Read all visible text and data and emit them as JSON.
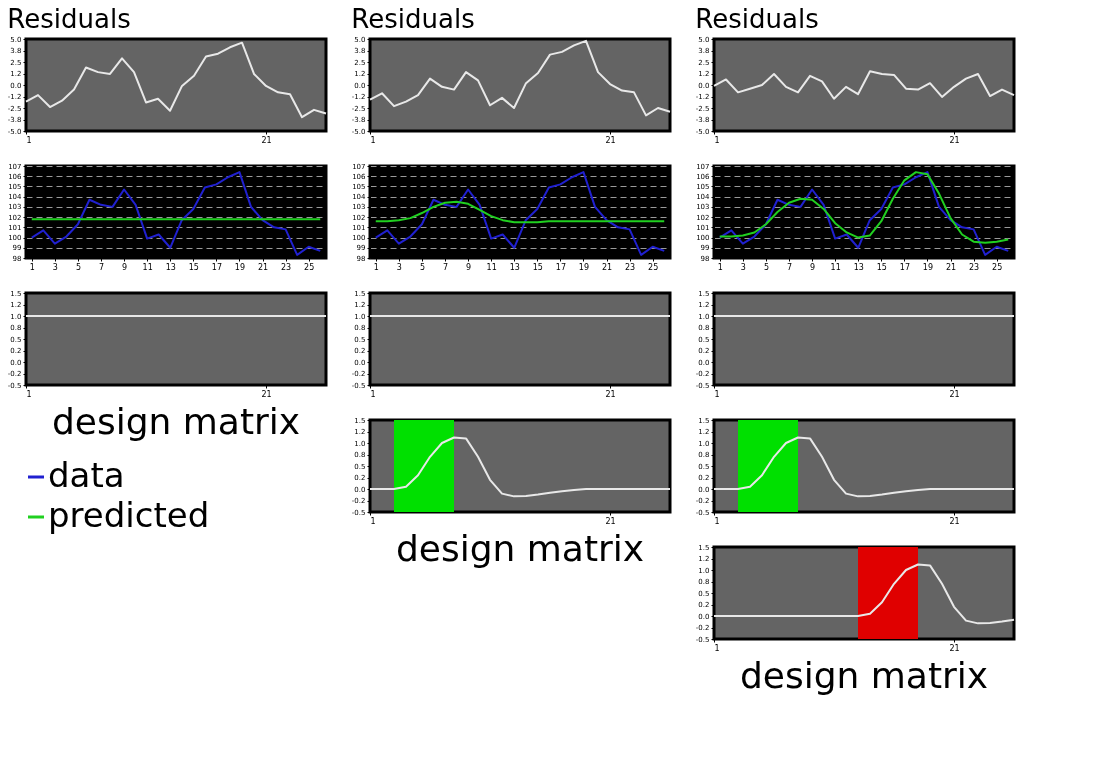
{
  "chart_data": [
    {
      "type": "line",
      "title": "Residuals",
      "x": [
        1,
        2,
        3,
        4,
        5,
        6,
        7,
        8,
        9,
        10,
        11,
        12,
        13,
        14,
        15,
        16,
        17,
        18,
        19,
        20,
        21,
        22,
        23,
        24,
        25,
        26
      ],
      "xlim": [
        1,
        26
      ],
      "xticks": [
        1,
        21
      ],
      "ylim": [
        -5,
        5
      ],
      "yticks": [
        {
          "value": 5,
          "label": "5.0"
        },
        {
          "value": 3.75,
          "label": "3.8"
        },
        {
          "value": 2.5,
          "label": "2.5"
        },
        {
          "value": 1.25,
          "label": "1.2"
        },
        {
          "value": 0,
          "label": "0.0"
        },
        {
          "value": -1.25,
          "label": "-1.2"
        },
        {
          "value": -2.5,
          "label": "-2.5"
        },
        {
          "value": -3.75,
          "label": "-3.8"
        },
        {
          "value": -5,
          "label": "-5.0"
        }
      ],
      "grid": false,
      "series": [
        {
          "color": "#e8e8e8",
          "values": [
            -1.8,
            -1.1,
            -2.4,
            -1.7,
            -0.5,
            1.9,
            1.4,
            1.2,
            2.9,
            1.4,
            -1.9,
            -1.5,
            -2.8,
            -0.1,
            1.0,
            3.1,
            3.4,
            4.1,
            4.6,
            1.2,
            -0.1,
            -0.8,
            -1.0,
            -3.5,
            -2.7,
            -3.1
          ]
        }
      ]
    },
    {
      "type": "line",
      "title": "Residuals",
      "x": [
        1,
        2,
        3,
        4,
        5,
        6,
        7,
        8,
        9,
        10,
        11,
        12,
        13,
        14,
        15,
        16,
        17,
        18,
        19,
        20,
        21,
        22,
        23,
        24,
        25,
        26
      ],
      "xlim": [
        1,
        26
      ],
      "xticks": [
        1,
        21
      ],
      "ylim": [
        -5,
        5
      ],
      "yticks": [
        {
          "value": 5,
          "label": "5.0"
        },
        {
          "value": 3.75,
          "label": "3.8"
        },
        {
          "value": 2.5,
          "label": "2.5"
        },
        {
          "value": 1.25,
          "label": "1.2"
        },
        {
          "value": 0,
          "label": "0.0"
        },
        {
          "value": -1.25,
          "label": "-1.2"
        },
        {
          "value": -2.5,
          "label": "-2.5"
        },
        {
          "value": -3.75,
          "label": "-3.8"
        },
        {
          "value": -5,
          "label": "-5.0"
        }
      ],
      "grid": false,
      "series": [
        {
          "color": "#e8e8e8",
          "values": [
            -1.6,
            -0.9,
            -2.3,
            -1.8,
            -1.1,
            0.7,
            -0.2,
            -0.5,
            1.4,
            0.5,
            -2.2,
            -1.4,
            -2.5,
            0.2,
            1.3,
            3.3,
            3.6,
            4.3,
            4.8,
            1.4,
            0.1,
            -0.6,
            -0.8,
            -3.3,
            -2.5,
            -2.9
          ]
        }
      ]
    },
    {
      "type": "line",
      "title": "Residuals",
      "x": [
        1,
        2,
        3,
        4,
        5,
        6,
        7,
        8,
        9,
        10,
        11,
        12,
        13,
        14,
        15,
        16,
        17,
        18,
        19,
        20,
        21,
        22,
        23,
        24,
        25,
        26
      ],
      "xlim": [
        1,
        26
      ],
      "xticks": [
        1,
        21
      ],
      "ylim": [
        -5,
        5
      ],
      "yticks": [
        {
          "value": 5,
          "label": "5.0"
        },
        {
          "value": 3.75,
          "label": "3.8"
        },
        {
          "value": 2.5,
          "label": "2.5"
        },
        {
          "value": 1.25,
          "label": "1.2"
        },
        {
          "value": 0,
          "label": "0.0"
        },
        {
          "value": -1.25,
          "label": "-1.2"
        },
        {
          "value": -2.5,
          "label": "-2.5"
        },
        {
          "value": -3.75,
          "label": "-3.8"
        },
        {
          "value": -5,
          "label": "-5.0"
        }
      ],
      "grid": false,
      "series": [
        {
          "color": "#e8e8e8",
          "values": [
            -0.1,
            0.6,
            -0.8,
            -0.4,
            0.0,
            1.2,
            -0.2,
            -0.8,
            1.0,
            0.4,
            -1.5,
            -0.2,
            -1.0,
            1.5,
            1.2,
            1.1,
            -0.4,
            -0.5,
            0.2,
            -1.3,
            -0.2,
            0.7,
            1.2,
            -1.2,
            -0.5,
            -1.1
          ]
        }
      ]
    },
    {
      "type": "line",
      "x": [
        1,
        2,
        3,
        4,
        5,
        6,
        7,
        8,
        9,
        10,
        11,
        12,
        13,
        14,
        15,
        16,
        17,
        18,
        19,
        20,
        21,
        22,
        23,
        24,
        25,
        26
      ],
      "xlim": [
        0.5,
        26.5
      ],
      "xticks": [
        1,
        3,
        5,
        7,
        9,
        11,
        13,
        15,
        17,
        19,
        21,
        23,
        25
      ],
      "ylim": [
        98,
        107
      ],
      "yticks": [
        98,
        99,
        100,
        101,
        102,
        103,
        104,
        105,
        106,
        107
      ],
      "grid": "y",
      "legend": "bottom left",
      "series": [
        {
          "name": "data",
          "color": "#2020d0",
          "values": [
            100.0,
            100.7,
            99.4,
            100.1,
            101.3,
            103.7,
            103.2,
            103.0,
            104.7,
            103.2,
            99.9,
            100.3,
            99.0,
            101.7,
            102.8,
            104.9,
            105.2,
            105.9,
            106.4,
            103.0,
            101.7,
            101.0,
            100.8,
            98.3,
            99.1,
            98.7
          ]
        },
        {
          "name": "predicted",
          "color": "#20d020",
          "values": [
            101.8,
            101.8,
            101.8,
            101.8,
            101.8,
            101.8,
            101.8,
            101.8,
            101.8,
            101.8,
            101.8,
            101.8,
            101.8,
            101.8,
            101.8,
            101.8,
            101.8,
            101.8,
            101.8,
            101.8,
            101.8,
            101.8,
            101.8,
            101.8,
            101.8,
            101.8
          ]
        }
      ]
    },
    {
      "type": "line",
      "x": [
        1,
        2,
        3,
        4,
        5,
        6,
        7,
        8,
        9,
        10,
        11,
        12,
        13,
        14,
        15,
        16,
        17,
        18,
        19,
        20,
        21,
        22,
        23,
        24,
        25,
        26
      ],
      "xlim": [
        0.5,
        26.5
      ],
      "xticks": [
        1,
        3,
        5,
        7,
        9,
        11,
        13,
        15,
        17,
        19,
        21,
        23,
        25
      ],
      "ylim": [
        98,
        107
      ],
      "yticks": [
        98,
        99,
        100,
        101,
        102,
        103,
        104,
        105,
        106,
        107
      ],
      "grid": "y",
      "series": [
        {
          "name": "data",
          "color": "#2020d0",
          "values": [
            100.0,
            100.7,
            99.4,
            100.1,
            101.3,
            103.7,
            103.2,
            103.0,
            104.7,
            103.2,
            99.9,
            100.3,
            99.0,
            101.7,
            102.8,
            104.9,
            105.2,
            105.9,
            106.4,
            103.0,
            101.7,
            101.0,
            100.8,
            98.3,
            99.1,
            98.7
          ]
        },
        {
          "name": "predicted",
          "color": "#20d020",
          "values": [
            101.6,
            101.6,
            101.7,
            101.9,
            102.4,
            103.0,
            103.4,
            103.5,
            103.3,
            102.7,
            102.1,
            101.7,
            101.5,
            101.5,
            101.5,
            101.6,
            101.6,
            101.6,
            101.6,
            101.6,
            101.6,
            101.6,
            101.6,
            101.6,
            101.6,
            101.6
          ]
        }
      ]
    },
    {
      "type": "line",
      "x": [
        1,
        2,
        3,
        4,
        5,
        6,
        7,
        8,
        9,
        10,
        11,
        12,
        13,
        14,
        15,
        16,
        17,
        18,
        19,
        20,
        21,
        22,
        23,
        24,
        25,
        26
      ],
      "xlim": [
        0.5,
        26.5
      ],
      "xticks": [
        1,
        3,
        5,
        7,
        9,
        11,
        13,
        15,
        17,
        19,
        21,
        23,
        25
      ],
      "ylim": [
        98,
        107
      ],
      "yticks": [
        98,
        99,
        100,
        101,
        102,
        103,
        104,
        105,
        106,
        107
      ],
      "grid": "y",
      "series": [
        {
          "name": "data",
          "color": "#2020d0",
          "values": [
            100.0,
            100.7,
            99.4,
            100.1,
            101.3,
            103.7,
            103.2,
            103.0,
            104.7,
            103.2,
            99.9,
            100.3,
            99.0,
            101.7,
            102.8,
            104.9,
            105.2,
            105.9,
            106.4,
            103.0,
            101.7,
            101.0,
            100.8,
            98.3,
            99.1,
            98.7
          ]
        },
        {
          "name": "predicted",
          "color": "#20d020",
          "values": [
            100.1,
            100.1,
            100.2,
            100.5,
            101.3,
            102.5,
            103.4,
            103.8,
            103.7,
            102.8,
            101.4,
            100.5,
            100.0,
            100.2,
            101.6,
            103.8,
            105.6,
            106.4,
            106.2,
            104.3,
            101.9,
            100.3,
            99.6,
            99.5,
            99.6,
            99.8
          ]
        }
      ]
    },
    {
      "type": "line",
      "x": [
        1,
        2,
        3,
        4,
        5,
        6,
        7,
        8,
        9,
        10,
        11,
        12,
        13,
        14,
        15,
        16,
        17,
        18,
        19,
        20,
        21,
        22,
        23,
        24,
        25,
        26
      ],
      "xlim": [
        1,
        26
      ],
      "xticks": [
        1,
        21
      ],
      "ylim": [
        -0.5,
        1.5
      ],
      "yticks": [
        {
          "value": 1.5,
          "label": "1.5"
        },
        {
          "value": 1.25,
          "label": "1.2"
        },
        {
          "value": 1.0,
          "label": "1.0"
        },
        {
          "value": 0.75,
          "label": "0.8"
        },
        {
          "value": 0.5,
          "label": "0.5"
        },
        {
          "value": 0.25,
          "label": "0.2"
        },
        {
          "value": 0,
          "label": "0.0"
        },
        {
          "value": -0.25,
          "label": "-0.2"
        },
        {
          "value": -0.5,
          "label": "-0.5"
        }
      ],
      "grid": false,
      "annotations": [
        "design matrix"
      ],
      "series": [
        {
          "color": "#e8e8e8",
          "values": [
            1,
            1,
            1,
            1,
            1,
            1,
            1,
            1,
            1,
            1,
            1,
            1,
            1,
            1,
            1,
            1,
            1,
            1,
            1,
            1,
            1,
            1,
            1,
            1,
            1,
            1
          ]
        }
      ]
    },
    {
      "type": "line",
      "x": [
        1,
        2,
        3,
        4,
        5,
        6,
        7,
        8,
        9,
        10,
        11,
        12,
        13,
        14,
        15,
        16,
        17,
        18,
        19,
        20,
        21,
        22,
        23,
        24,
        25,
        26
      ],
      "xlim": [
        1,
        26
      ],
      "xticks": [
        1,
        21
      ],
      "ylim": [
        -0.5,
        1.5
      ],
      "yticks": [
        {
          "value": 1.5,
          "label": "1.5"
        },
        {
          "value": 1.25,
          "label": "1.2"
        },
        {
          "value": 1.0,
          "label": "1.0"
        },
        {
          "value": 0.75,
          "label": "0.8"
        },
        {
          "value": 0.5,
          "label": "0.5"
        },
        {
          "value": 0.25,
          "label": "0.2"
        },
        {
          "value": 0,
          "label": "0.0"
        },
        {
          "value": -0.25,
          "label": "-0.2"
        },
        {
          "value": -0.5,
          "label": "-0.5"
        }
      ],
      "grid": false,
      "series": [
        {
          "color": "#e8e8e8",
          "values": [
            1,
            1,
            1,
            1,
            1,
            1,
            1,
            1,
            1,
            1,
            1,
            1,
            1,
            1,
            1,
            1,
            1,
            1,
            1,
            1,
            1,
            1,
            1,
            1,
            1,
            1
          ]
        }
      ]
    },
    {
      "type": "line",
      "x": [
        1,
        2,
        3,
        4,
        5,
        6,
        7,
        8,
        9,
        10,
        11,
        12,
        13,
        14,
        15,
        16,
        17,
        18,
        19,
        20,
        21,
        22,
        23,
        24,
        25,
        26
      ],
      "xlim": [
        1,
        26
      ],
      "xticks": [
        1,
        21
      ],
      "ylim": [
        -0.5,
        1.5
      ],
      "yticks": [
        {
          "value": 1.5,
          "label": "1.5"
        },
        {
          "value": 1.25,
          "label": "1.2"
        },
        {
          "value": 1.0,
          "label": "1.0"
        },
        {
          "value": 0.75,
          "label": "0.8"
        },
        {
          "value": 0.5,
          "label": "0.5"
        },
        {
          "value": 0.25,
          "label": "0.2"
        },
        {
          "value": 0,
          "label": "0.0"
        },
        {
          "value": -0.25,
          "label": "-0.2"
        },
        {
          "value": -0.5,
          "label": "-0.5"
        }
      ],
      "grid": false,
      "series": [
        {
          "color": "#e8e8e8",
          "values": [
            1,
            1,
            1,
            1,
            1,
            1,
            1,
            1,
            1,
            1,
            1,
            1,
            1,
            1,
            1,
            1,
            1,
            1,
            1,
            1,
            1,
            1,
            1,
            1,
            1,
            1
          ]
        }
      ]
    },
    {
      "type": "line",
      "x": [
        1,
        2,
        3,
        4,
        5,
        6,
        7,
        8,
        9,
        10,
        11,
        12,
        13,
        14,
        15,
        16,
        17,
        18,
        19,
        20,
        21,
        22,
        23,
        24,
        25,
        26
      ],
      "xlim": [
        1,
        26
      ],
      "xticks": [
        1,
        21
      ],
      "ylim": [
        -0.5,
        1.5
      ],
      "yticks": [
        {
          "value": 1.5,
          "label": "1.5"
        },
        {
          "value": 1.25,
          "label": "1.2"
        },
        {
          "value": 1.0,
          "label": "1.0"
        },
        {
          "value": 0.75,
          "label": "0.8"
        },
        {
          "value": 0.5,
          "label": "0.5"
        },
        {
          "value": 0.25,
          "label": "0.2"
        },
        {
          "value": 0,
          "label": "0.0"
        },
        {
          "value": -0.25,
          "label": "-0.2"
        },
        {
          "value": -0.5,
          "label": "-0.5"
        }
      ],
      "grid": false,
      "annotations": [
        "design matrix"
      ],
      "bands": [
        {
          "axis": "x",
          "from": 3,
          "to": 8,
          "color": "#00e000"
        }
      ],
      "series": [
        {
          "color": "#e8e8e8",
          "values": [
            0,
            0,
            0,
            0.05,
            0.3,
            0.7,
            1.0,
            1.12,
            1.1,
            0.7,
            0.2,
            -0.1,
            -0.16,
            -0.15,
            -0.12,
            -0.08,
            -0.05,
            -0.02,
            0,
            0,
            0,
            0,
            0,
            0,
            0,
            0
          ]
        }
      ]
    },
    {
      "type": "line",
      "x": [
        1,
        2,
        3,
        4,
        5,
        6,
        7,
        8,
        9,
        10,
        11,
        12,
        13,
        14,
        15,
        16,
        17,
        18,
        19,
        20,
        21,
        22,
        23,
        24,
        25,
        26
      ],
      "xlim": [
        1,
        26
      ],
      "xticks": [
        1,
        21
      ],
      "ylim": [
        -0.5,
        1.5
      ],
      "yticks": [
        {
          "value": 1.5,
          "label": "1.5"
        },
        {
          "value": 1.25,
          "label": "1.2"
        },
        {
          "value": 1.0,
          "label": "1.0"
        },
        {
          "value": 0.75,
          "label": "0.8"
        },
        {
          "value": 0.5,
          "label": "0.5"
        },
        {
          "value": 0.25,
          "label": "0.2"
        },
        {
          "value": 0,
          "label": "0.0"
        },
        {
          "value": -0.25,
          "label": "-0.2"
        },
        {
          "value": -0.5,
          "label": "-0.5"
        }
      ],
      "grid": false,
      "bands": [
        {
          "axis": "x",
          "from": 3,
          "to": 8,
          "color": "#00e000"
        }
      ],
      "series": [
        {
          "color": "#e8e8e8",
          "values": [
            0,
            0,
            0,
            0.05,
            0.3,
            0.7,
            1.0,
            1.12,
            1.1,
            0.7,
            0.2,
            -0.1,
            -0.16,
            -0.15,
            -0.12,
            -0.08,
            -0.05,
            -0.02,
            0,
            0,
            0,
            0,
            0,
            0,
            0,
            0
          ]
        }
      ]
    },
    {
      "type": "line",
      "x": [
        1,
        2,
        3,
        4,
        5,
        6,
        7,
        8,
        9,
        10,
        11,
        12,
        13,
        14,
        15,
        16,
        17,
        18,
        19,
        20,
        21,
        22,
        23,
        24,
        25,
        26
      ],
      "xlim": [
        1,
        26
      ],
      "xticks": [
        1,
        21
      ],
      "ylim": [
        -0.5,
        1.5
      ],
      "yticks": [
        {
          "value": 1.5,
          "label": "1.5"
        },
        {
          "value": 1.25,
          "label": "1.2"
        },
        {
          "value": 1.0,
          "label": "1.0"
        },
        {
          "value": 0.75,
          "label": "0.8"
        },
        {
          "value": 0.5,
          "label": "0.5"
        },
        {
          "value": 0.25,
          "label": "0.2"
        },
        {
          "value": 0,
          "label": "0.0"
        },
        {
          "value": -0.25,
          "label": "-0.2"
        },
        {
          "value": -0.5,
          "label": "-0.5"
        }
      ],
      "grid": false,
      "annotations": [
        "design matrix"
      ],
      "bands": [
        {
          "axis": "x",
          "from": 13,
          "to": 18,
          "color": "#e00000"
        }
      ],
      "series": [
        {
          "color": "#e8e8e8",
          "values": [
            0,
            0,
            0,
            0,
            0,
            0,
            0,
            0,
            0,
            0,
            0,
            0,
            0,
            0.05,
            0.3,
            0.7,
            1.0,
            1.12,
            1.1,
            0.7,
            0.2,
            -0.1,
            -0.16,
            -0.15,
            -0.12,
            -0.08
          ]
        }
      ]
    }
  ]
}
